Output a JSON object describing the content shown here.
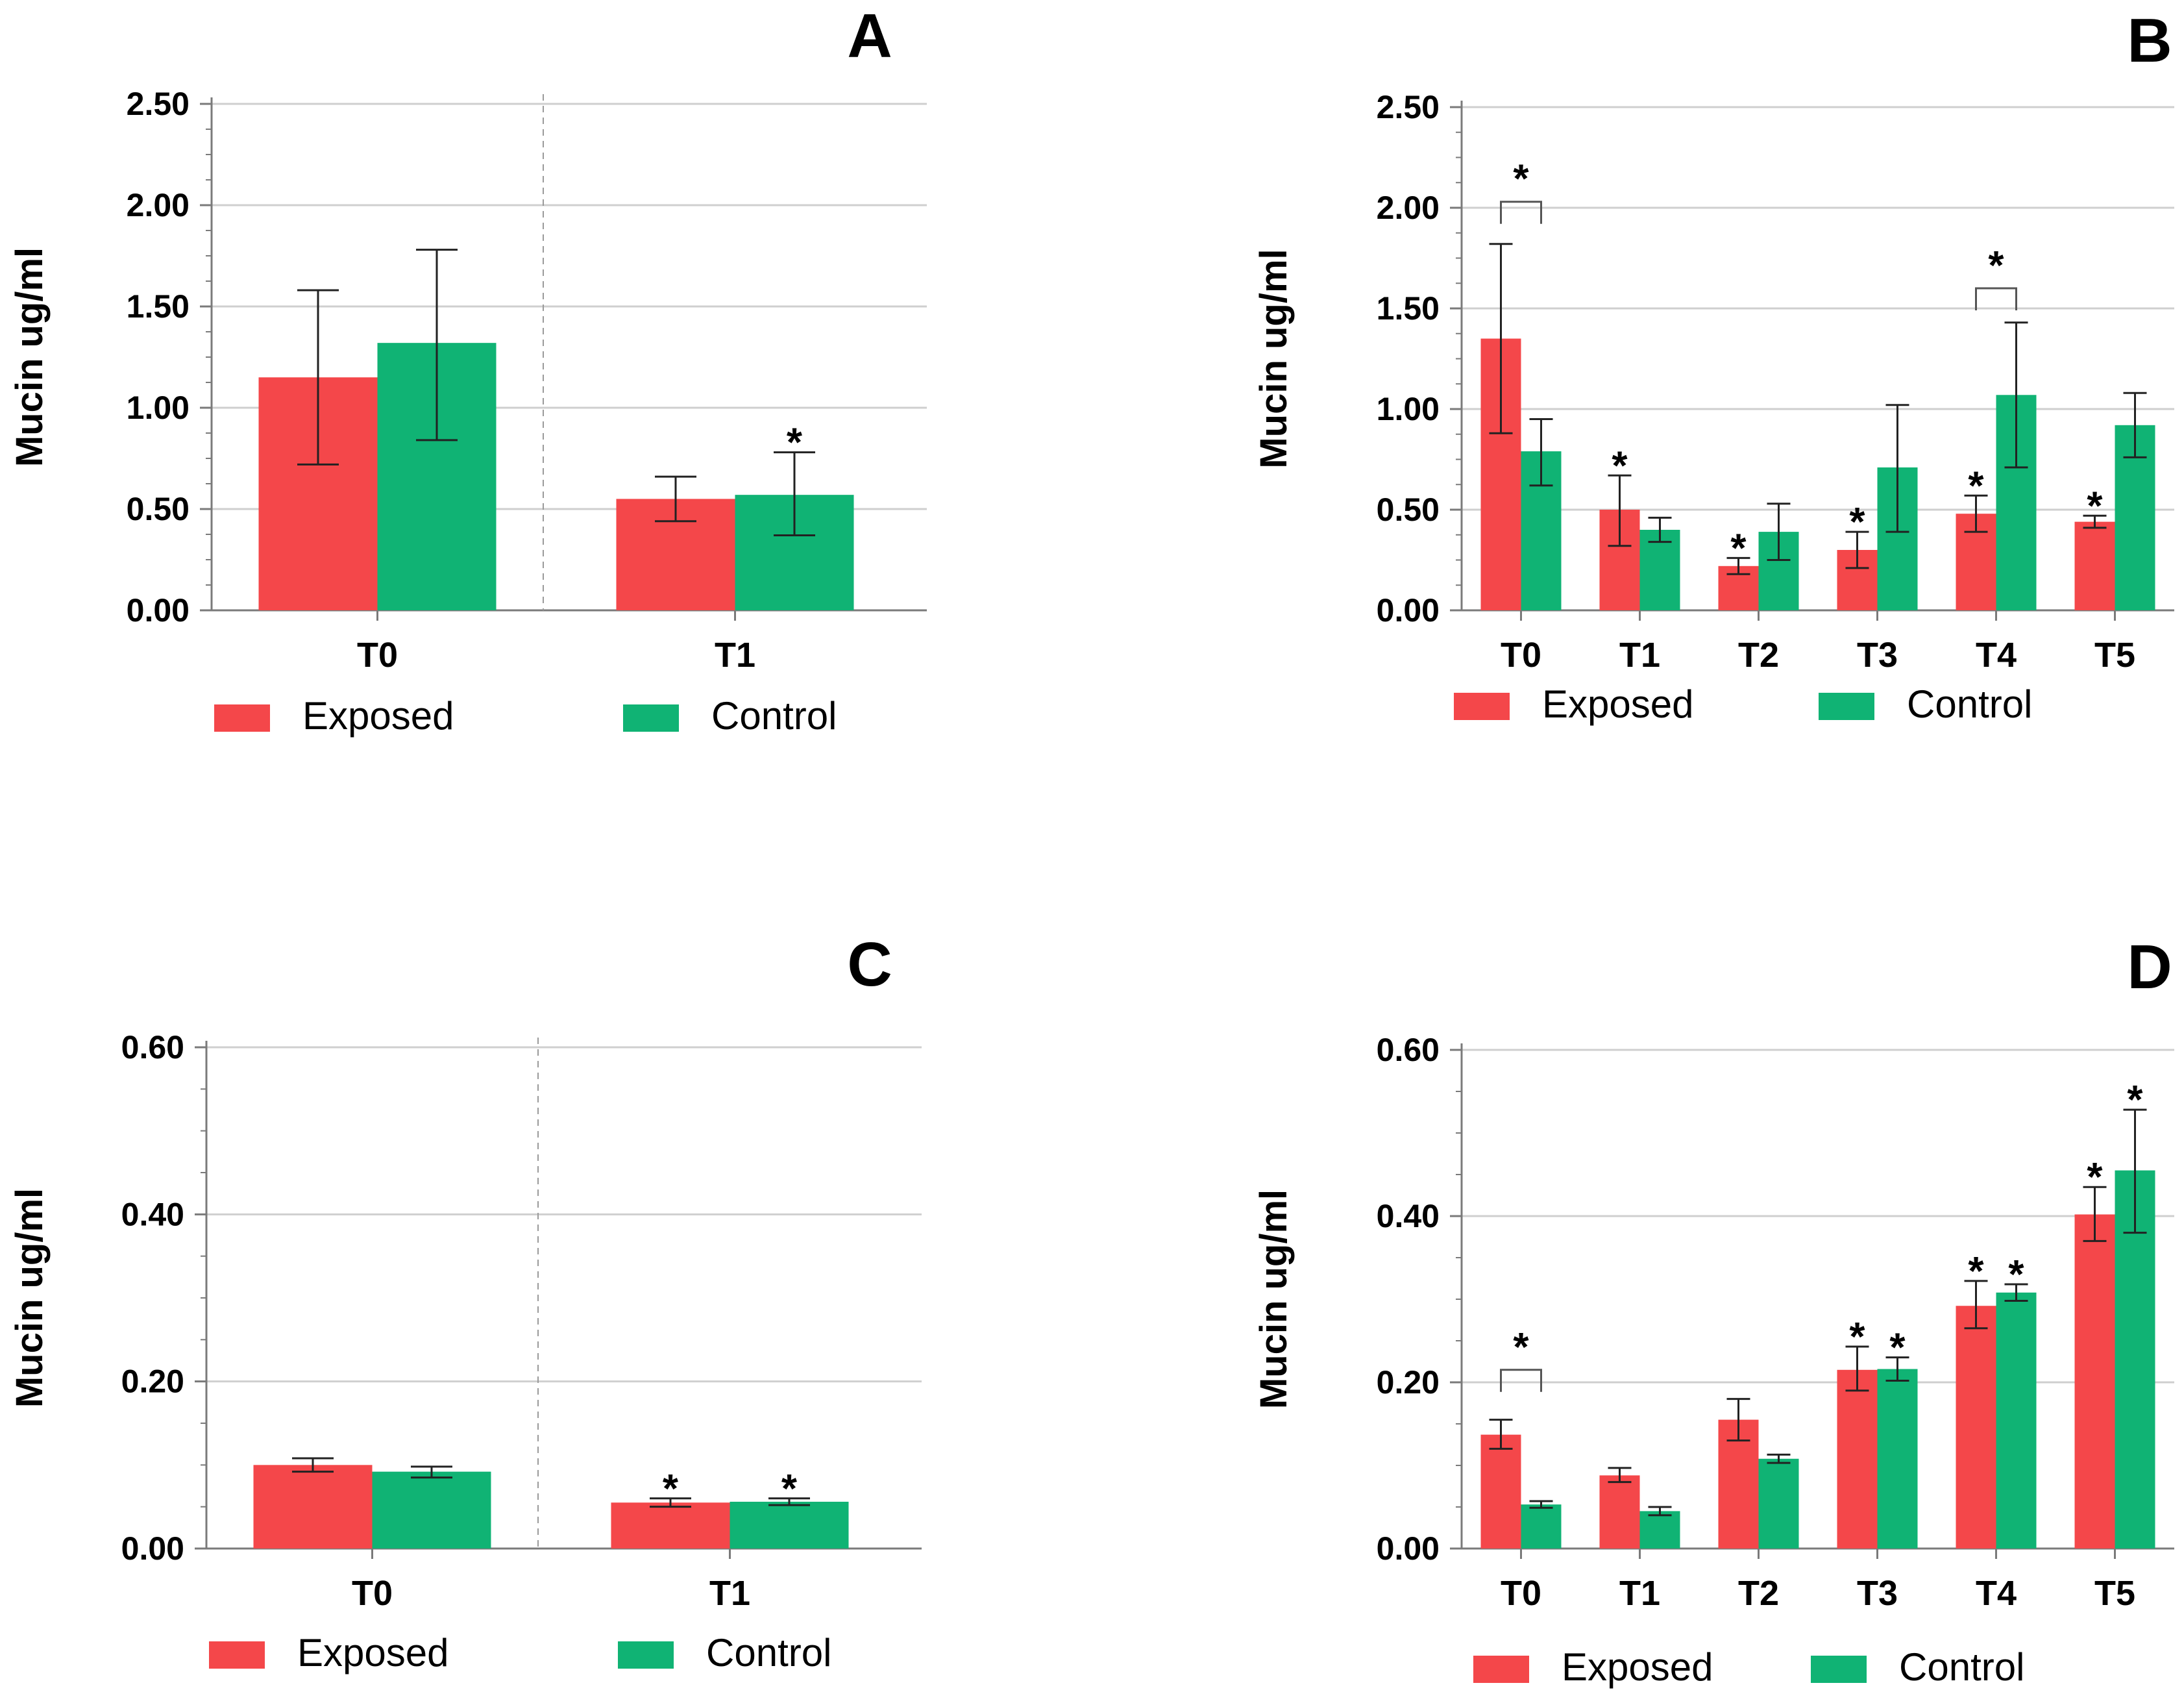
{
  "colors": {
    "exposed": "#f4474a",
    "control": "#10b374",
    "grid": "#cfcfcf",
    "axis": "#7a7a7a",
    "text": "#000000"
  },
  "chart_data": [
    {
      "id": "A",
      "panel_label": "A",
      "type": "bar",
      "title": "",
      "ylabel": "Mucin ug/ml",
      "xlabel": "",
      "ylim": [
        0,
        2.5
      ],
      "yticks": [
        "0.00",
        "0.50",
        "1.00",
        "1.50",
        "2.00",
        "2.50"
      ],
      "categories": [
        "T0",
        "T1"
      ],
      "legend": [
        "Exposed",
        "Control"
      ],
      "series": [
        {
          "name": "Exposed",
          "values": [
            1.15,
            0.55
          ],
          "err_low": [
            0.72,
            0.44
          ],
          "err_high": [
            1.58,
            0.66
          ]
        },
        {
          "name": "Control",
          "values": [
            1.32,
            0.57
          ],
          "err_low": [
            0.84,
            0.37
          ],
          "err_high": [
            1.78,
            0.78
          ]
        }
      ],
      "annotations": [
        {
          "text": "*",
          "category": 1,
          "series": 1
        }
      ],
      "brackets": []
    },
    {
      "id": "B",
      "panel_label": "B",
      "type": "bar",
      "title": "",
      "ylabel": "Mucin ug/ml",
      "xlabel": "",
      "ylim": [
        0,
        2.5
      ],
      "yticks": [
        "0.00",
        "0.50",
        "1.00",
        "1.50",
        "2.00",
        "2.50"
      ],
      "categories": [
        "T0",
        "T1",
        "T2",
        "T3",
        "T4",
        "T5"
      ],
      "legend": [
        "Exposed",
        "Control"
      ],
      "series": [
        {
          "name": "Exposed",
          "values": [
            1.35,
            0.5,
            0.22,
            0.3,
            0.48,
            0.44
          ],
          "err_low": [
            0.88,
            0.32,
            0.18,
            0.21,
            0.39,
            0.41
          ],
          "err_high": [
            1.82,
            0.67,
            0.26,
            0.39,
            0.57,
            0.47
          ]
        },
        {
          "name": "Control",
          "values": [
            0.79,
            0.4,
            0.39,
            0.71,
            1.07,
            0.92
          ],
          "err_low": [
            0.62,
            0.34,
            0.25,
            0.39,
            0.71,
            0.76
          ],
          "err_high": [
            0.95,
            0.46,
            0.53,
            1.02,
            1.43,
            1.08
          ]
        }
      ],
      "annotations": [
        {
          "text": "*",
          "category": 1,
          "series": 0
        },
        {
          "text": "*",
          "category": 2,
          "series": 0
        },
        {
          "text": "*",
          "category": 3,
          "series": 0
        },
        {
          "text": "*",
          "category": 4,
          "series": 0
        },
        {
          "text": "*",
          "category": 5,
          "series": 0
        }
      ],
      "brackets": [
        {
          "category": 0,
          "y": 2.03,
          "text": "*"
        },
        {
          "category": 4,
          "y": 1.6,
          "text": "*"
        }
      ]
    },
    {
      "id": "C",
      "panel_label": "C",
      "type": "bar",
      "title": "",
      "ylabel": "Mucin ug/ml",
      "xlabel": "",
      "ylim": [
        0,
        0.6
      ],
      "yticks": [
        "0.00",
        "0.20",
        "0.40",
        "0.60"
      ],
      "categories": [
        "T0",
        "T1"
      ],
      "legend": [
        "Exposed",
        "Control"
      ],
      "series": [
        {
          "name": "Exposed",
          "values": [
            0.1,
            0.055
          ],
          "err_low": [
            0.092,
            0.05
          ],
          "err_high": [
            0.108,
            0.06
          ]
        },
        {
          "name": "Control",
          "values": [
            0.092,
            0.056
          ],
          "err_low": [
            0.085,
            0.052
          ],
          "err_high": [
            0.098,
            0.06
          ]
        }
      ],
      "annotations": [
        {
          "text": "*",
          "category": 1,
          "series": 0
        },
        {
          "text": "*",
          "category": 1,
          "series": 1
        }
      ],
      "brackets": []
    },
    {
      "id": "D",
      "panel_label": "D",
      "type": "bar",
      "title": "",
      "ylabel": "Mucin ug/ml",
      "xlabel": "",
      "ylim": [
        0,
        0.6
      ],
      "yticks": [
        "0.00",
        "0.20",
        "0.40",
        "0.60"
      ],
      "categories": [
        "T0",
        "T1",
        "T2",
        "T3",
        "T4",
        "T5"
      ],
      "legend": [
        "Exposed",
        "Control"
      ],
      "series": [
        {
          "name": "Exposed",
          "values": [
            0.137,
            0.088,
            0.155,
            0.215,
            0.292,
            0.402
          ],
          "err_low": [
            0.12,
            0.08,
            0.13,
            0.19,
            0.265,
            0.37
          ],
          "err_high": [
            0.155,
            0.097,
            0.18,
            0.243,
            0.322,
            0.435
          ]
        },
        {
          "name": "Control",
          "values": [
            0.053,
            0.045,
            0.108,
            0.216,
            0.308,
            0.455
          ],
          "err_low": [
            0.049,
            0.04,
            0.103,
            0.202,
            0.298,
            0.38
          ],
          "err_high": [
            0.057,
            0.05,
            0.113,
            0.23,
            0.318,
            0.528
          ]
        }
      ],
      "annotations": [
        {
          "text": "*",
          "category": 3,
          "series": 0
        },
        {
          "text": "*",
          "category": 3,
          "series": 1
        },
        {
          "text": "*",
          "category": 4,
          "series": 0
        },
        {
          "text": "*",
          "category": 4,
          "series": 1
        },
        {
          "text": "*",
          "category": 5,
          "series": 0
        },
        {
          "text": "*",
          "category": 5,
          "series": 1
        }
      ],
      "brackets": [
        {
          "category": 0,
          "y": 0.215,
          "text": "*"
        }
      ]
    }
  ]
}
